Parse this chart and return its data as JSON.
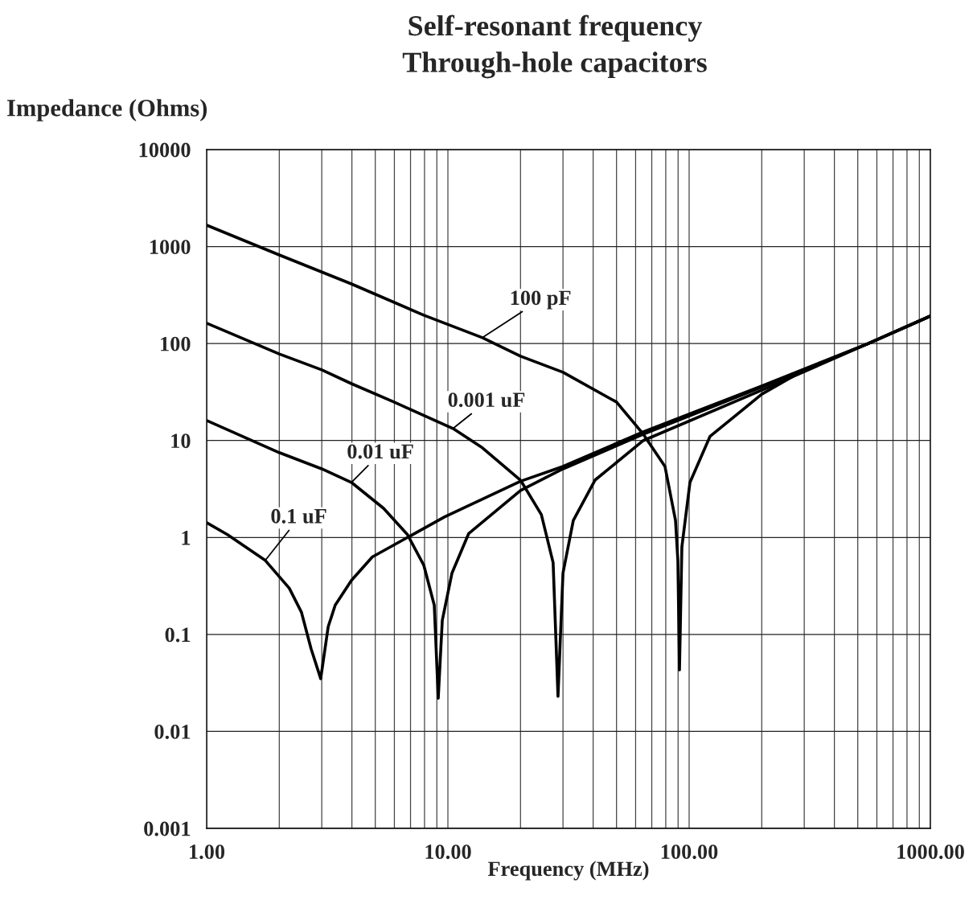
{
  "chart_data": {
    "type": "line",
    "title": "Self-resonant frequency\nThrough-hole capacitors",
    "xlabel": "Frequency (MHz)",
    "ylabel": "Impedance (Ohms)",
    "log": "xy",
    "grid": true,
    "legend": false,
    "marker": "none",
    "line_style": "solid",
    "xlim": [
      1,
      1000
    ],
    "ylim": [
      0.001,
      10000
    ],
    "xticks": [
      {
        "value": 1,
        "label": "1.00"
      },
      {
        "value": 10,
        "label": "10.00"
      },
      {
        "value": 100,
        "label": "100.00"
      },
      {
        "value": 1000,
        "label": "1000.00"
      }
    ],
    "yticks": [
      0.001,
      0.01,
      0.1,
      1,
      10,
      100,
      1000,
      10000
    ],
    "series": [
      {
        "name": "100 pF",
        "color": "#000000",
        "x": [
          1,
          2,
          3.98,
          7.94,
          13.9,
          20,
          30,
          50,
          64.6,
          79.4,
          87.8,
          89.8,
          91.2,
          93.3,
          100.8,
          122,
          200,
          300,
          553,
          1000
        ],
        "values": [
          1660,
          820,
          412,
          196,
          115,
          74,
          50.5,
          24.9,
          11.6,
          5.4,
          1.5,
          0.58,
          0.043,
          0.8,
          3.7,
          11,
          30,
          53.5,
          100,
          192
        ]
      },
      {
        "name": "0.001 uF",
        "color": "#000000",
        "x": [
          1,
          2,
          3,
          3.98,
          5.98,
          10.5,
          13.9,
          20,
          24.4,
          27.3,
          28.6,
          30,
          33.1,
          40.7,
          64.6,
          200,
          553,
          1000
        ],
        "values": [
          162,
          78,
          53.5,
          38.6,
          24.9,
          13.3,
          8.4,
          3.9,
          1.72,
          0.55,
          0.023,
          0.43,
          1.5,
          3.9,
          10,
          33,
          100,
          192
        ]
      },
      {
        "name": "0.01 uF",
        "color": "#000000",
        "x": [
          1,
          2,
          3,
          3.98,
          5.41,
          6.8,
          7.94,
          8.78,
          9.12,
          9.48,
          10.4,
          12.2,
          20,
          30,
          64.6,
          200,
          553,
          1000
        ],
        "values": [
          16.1,
          7.5,
          5.1,
          3.7,
          2.0,
          1.07,
          0.52,
          0.2,
          0.022,
          0.14,
          0.43,
          1.1,
          3.05,
          5.1,
          11.6,
          35.5,
          100,
          192
        ]
      },
      {
        "name": "0.1 uF",
        "color": "#000000",
        "x": [
          1,
          1.22,
          1.75,
          2.2,
          2.47,
          2.71,
          2.97,
          3.19,
          3.41,
          3.98,
          4.86,
          6.8,
          9.7,
          20,
          30,
          64.6,
          200,
          553,
          1000
        ],
        "values": [
          1.42,
          1.07,
          0.58,
          0.3,
          0.17,
          0.071,
          0.035,
          0.12,
          0.2,
          0.36,
          0.63,
          1.0,
          1.63,
          3.8,
          5.4,
          12.3,
          36.5,
          100,
          192
        ]
      }
    ]
  }
}
